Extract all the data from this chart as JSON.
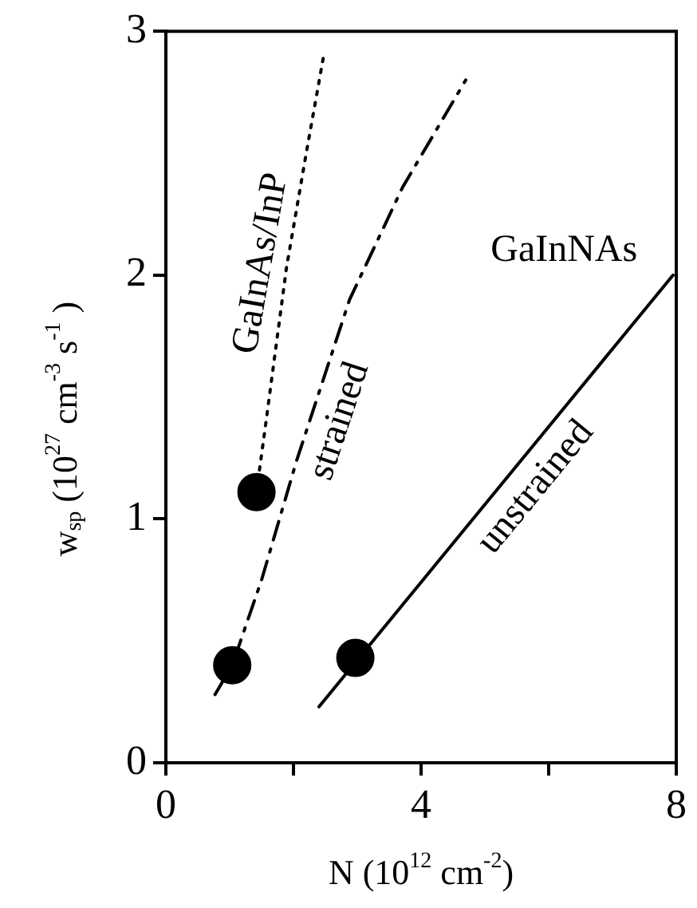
{
  "chart_data": {
    "type": "line",
    "xlabel": "N (10$^{12}$ cm$^{-2}$)",
    "ylabel": "w$_{sp}$ (10$^{27}$ cm$^{-3}$ s$^{-1}$ )",
    "xlim": [
      0,
      8
    ],
    "ylim": [
      0,
      3
    ],
    "xticks": [
      0,
      {
        "value": 2,
        "label": null
      },
      4,
      {
        "value": 6,
        "label": null
      },
      8
    ],
    "yticks": [
      0,
      1,
      2,
      3
    ],
    "grid": false,
    "legend": false,
    "annotations": [
      "GaInNAs"
    ],
    "series": [
      {
        "name": "GaInAs/InP",
        "color": "#000000",
        "line_style": "dotted",
        "marker": "none",
        "x": [
          1.42,
          1.56,
          1.89,
          2.2,
          2.48
        ],
        "values": [
          1.11,
          1.38,
          2.03,
          2.5,
          2.91
        ]
      },
      {
        "name": "strained",
        "color": "#000000",
        "line_style": "dashed",
        "marker": "none",
        "x": [
          0.77,
          1.04,
          1.5,
          2.05,
          2.88,
          3.71,
          4.7
        ],
        "values": [
          0.28,
          0.4,
          0.75,
          1.24,
          1.9,
          2.36,
          2.8
        ]
      },
      {
        "name": "unstrained",
        "color": "#000000",
        "line_style": "solid",
        "marker": "none",
        "x": [
          2.4,
          7.95
        ],
        "values": [
          0.23,
          2.0
        ]
      },
      {
        "type": "scatter",
        "color": "#000000",
        "marker": "circle",
        "x": [
          1.04,
          1.42,
          2.97
        ],
        "values": [
          0.4,
          1.11,
          0.43
        ]
      }
    ]
  }
}
